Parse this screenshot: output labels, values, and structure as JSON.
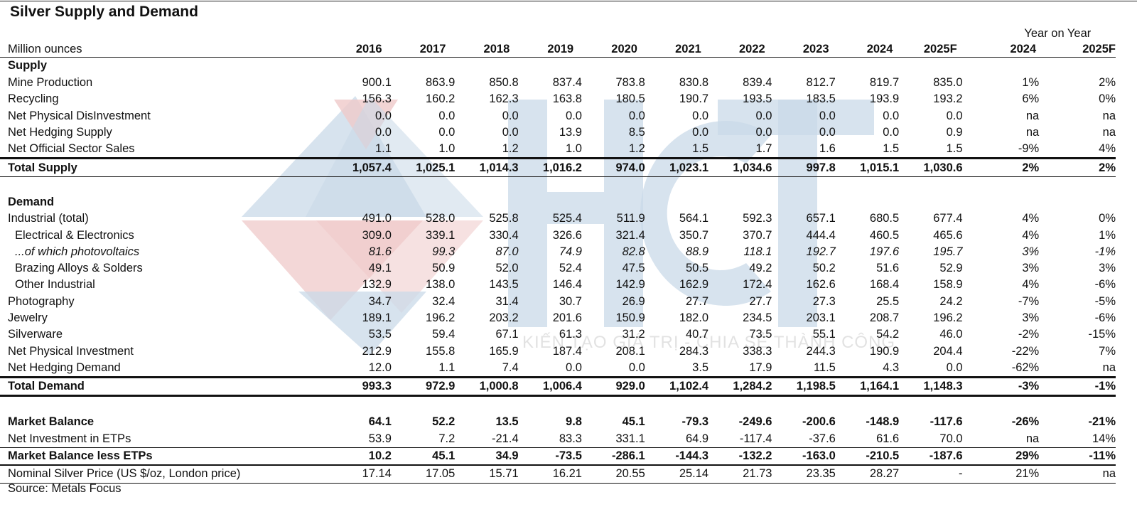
{
  "title": "Silver Supply and Demand",
  "unit_label": "Million ounces",
  "yoy_group_label": "Year on Year",
  "columns": [
    "2016",
    "2017",
    "2018",
    "2019",
    "2020",
    "2021",
    "2022",
    "2023",
    "2024",
    "2025F"
  ],
  "yoy_columns": [
    "2024",
    "2025F"
  ],
  "watermark": {
    "logo": "HCT",
    "slogan": "KIẾN TẠO GIÁ TRỊ - CHIA SẺ THÀNH CÔNG",
    "colors": {
      "blue": "#c9d9e8",
      "red": "#efc9c9"
    }
  },
  "supply": {
    "header": "Supply",
    "rows": [
      {
        "label": "Mine Production",
        "values": [
          "900.1",
          "863.9",
          "850.8",
          "837.4",
          "783.8",
          "830.8",
          "839.4",
          "812.7",
          "819.7",
          "835.0"
        ],
        "yoy": [
          "1%",
          "2%"
        ]
      },
      {
        "label": "Recycling",
        "values": [
          "156.3",
          "160.2",
          "162.3",
          "163.8",
          "180.5",
          "190.7",
          "193.5",
          "183.5",
          "193.9",
          "193.2"
        ],
        "yoy": [
          "6%",
          "0%"
        ]
      },
      {
        "label": "Net Physical DisInvestment",
        "values": [
          "0.0",
          "0.0",
          "0.0",
          "0.0",
          "0.0",
          "0.0",
          "0.0",
          "0.0",
          "0.0",
          "0.0"
        ],
        "yoy": [
          "na",
          "na"
        ]
      },
      {
        "label": "Net Hedging Supply",
        "values": [
          "0.0",
          "0.0",
          "0.0",
          "13.9",
          "8.5",
          "0.0",
          "0.0",
          "0.0",
          "0.0",
          "0.9"
        ],
        "yoy": [
          "na",
          "na"
        ]
      },
      {
        "label": "Net Official Sector Sales",
        "values": [
          "1.1",
          "1.0",
          "1.2",
          "1.0",
          "1.2",
          "1.5",
          "1.7",
          "1.6",
          "1.5",
          "1.5"
        ],
        "yoy": [
          "-9%",
          "4%"
        ]
      }
    ],
    "total": {
      "label": "Total Supply",
      "values": [
        "1,057.4",
        "1,025.1",
        "1,014.3",
        "1,016.2",
        "974.0",
        "1,023.1",
        "1,034.6",
        "997.8",
        "1,015.1",
        "1,030.6"
      ],
      "yoy": [
        "2%",
        "2%"
      ]
    }
  },
  "demand": {
    "header": "Demand",
    "rows": [
      {
        "label": "Industrial (total)",
        "values": [
          "491.0",
          "528.0",
          "525.8",
          "525.4",
          "511.9",
          "564.1",
          "592.3",
          "657.1",
          "680.5",
          "677.4"
        ],
        "yoy": [
          "4%",
          "0%"
        ]
      },
      {
        "label": "Electrical & Electronics",
        "values": [
          "309.0",
          "339.1",
          "330.4",
          "326.6",
          "321.4",
          "350.7",
          "370.7",
          "444.4",
          "460.5",
          "465.6"
        ],
        "yoy": [
          "4%",
          "1%"
        ]
      },
      {
        "label": "...of which photovoltaics",
        "values": [
          "81.6",
          "99.3",
          "87.0",
          "74.9",
          "82.8",
          "88.9",
          "118.1",
          "192.7",
          "197.6",
          "195.7"
        ],
        "yoy": [
          "3%",
          "-1%"
        ]
      },
      {
        "label": "Brazing Alloys & Solders",
        "values": [
          "49.1",
          "50.9",
          "52.0",
          "52.4",
          "47.5",
          "50.5",
          "49.2",
          "50.2",
          "51.6",
          "52.9"
        ],
        "yoy": [
          "3%",
          "3%"
        ]
      },
      {
        "label": "Other Industrial",
        "values": [
          "132.9",
          "138.0",
          "143.5",
          "146.4",
          "142.9",
          "162.9",
          "172.4",
          "162.6",
          "168.4",
          "158.9"
        ],
        "yoy": [
          "4%",
          "-6%"
        ]
      },
      {
        "label": "Photography",
        "values": [
          "34.7",
          "32.4",
          "31.4",
          "30.7",
          "26.9",
          "27.7",
          "27.7",
          "27.3",
          "25.5",
          "24.2"
        ],
        "yoy": [
          "-7%",
          "-5%"
        ]
      },
      {
        "label": "Jewelry",
        "values": [
          "189.1",
          "196.2",
          "203.2",
          "201.6",
          "150.9",
          "182.0",
          "234.5",
          "203.1",
          "208.7",
          "196.2"
        ],
        "yoy": [
          "3%",
          "-6%"
        ]
      },
      {
        "label": "Silverware",
        "values": [
          "53.5",
          "59.4",
          "67.1",
          "61.3",
          "31.2",
          "40.7",
          "73.5",
          "55.1",
          "54.2",
          "46.0"
        ],
        "yoy": [
          "-2%",
          "-15%"
        ]
      },
      {
        "label": "Net Physical Investment",
        "values": [
          "212.9",
          "155.8",
          "165.9",
          "187.4",
          "208.1",
          "284.3",
          "338.3",
          "244.3",
          "190.9",
          "204.4"
        ],
        "yoy": [
          "-22%",
          "7%"
        ]
      },
      {
        "label": "Net Hedging Demand",
        "values": [
          "12.0",
          "1.1",
          "7.4",
          "0.0",
          "0.0",
          "3.5",
          "17.9",
          "11.5",
          "4.3",
          "0.0"
        ],
        "yoy": [
          "-62%",
          "na"
        ]
      }
    ],
    "total": {
      "label": "Total Demand",
      "values": [
        "993.3",
        "972.9",
        "1,000.8",
        "1,006.4",
        "929.0",
        "1,102.4",
        "1,284.2",
        "1,198.5",
        "1,164.1",
        "1,148.3"
      ],
      "yoy": [
        "-3%",
        "-1%"
      ]
    }
  },
  "balance": {
    "market_balance": {
      "label": "Market Balance",
      "values": [
        "64.1",
        "52.2",
        "13.5",
        "9.8",
        "45.1",
        "-79.3",
        "-249.6",
        "-200.6",
        "-148.9",
        "-117.6"
      ],
      "yoy": [
        "-26%",
        "-21%"
      ]
    },
    "etps": {
      "label": "Net Investment in ETPs",
      "values": [
        "53.9",
        "7.2",
        "-21.4",
        "83.3",
        "331.1",
        "64.9",
        "-117.4",
        "-37.6",
        "61.6",
        "70.0"
      ],
      "yoy": [
        "na",
        "14%"
      ]
    },
    "less_etps": {
      "label": "Market Balance less ETPs",
      "values": [
        "10.2",
        "45.1",
        "34.9",
        "-73.5",
        "-286.1",
        "-144.3",
        "-132.2",
        "-163.0",
        "-210.5",
        "-187.6"
      ],
      "yoy": [
        "29%",
        "-11%"
      ]
    },
    "price": {
      "label": "Nominal Silver Price (US $/oz, London price)",
      "values": [
        "17.14",
        "17.05",
        "15.71",
        "16.21",
        "20.55",
        "25.14",
        "21.73",
        "23.35",
        "28.27",
        "-"
      ],
      "yoy": [
        "21%",
        "na"
      ]
    }
  },
  "source": "Source: Metals Focus"
}
